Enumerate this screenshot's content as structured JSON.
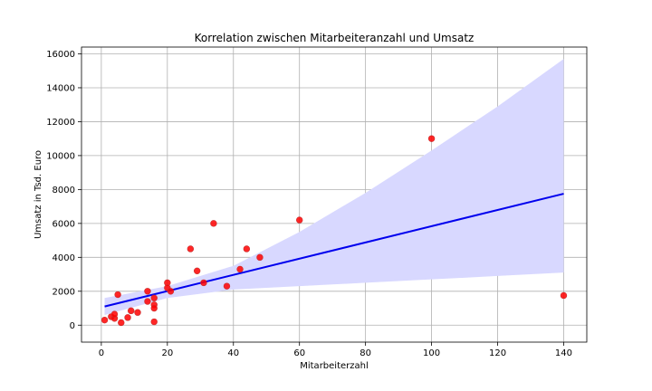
{
  "chart_data": {
    "type": "scatter",
    "title": "Korrelation zwischen Mitarbeiteranzahl und Umsatz",
    "xlabel": "Mitarbeiterzahl",
    "ylabel": "Umsatz in Tsd. Euro",
    "xlim": [
      -6,
      147
    ],
    "ylim": [
      -1000,
      16400
    ],
    "xticks": [
      0,
      20,
      40,
      60,
      80,
      100,
      120,
      140
    ],
    "yticks": [
      0,
      2000,
      4000,
      6000,
      8000,
      10000,
      12000,
      14000,
      16000
    ],
    "grid": true,
    "colors": {
      "points": "#ff0000",
      "points_edge": "#c83030",
      "regression": "#0000ee",
      "confidence_band": "#d8d8ff",
      "grid": "#b0b0b0"
    },
    "points": [
      {
        "x": 1,
        "y": 300
      },
      {
        "x": 3,
        "y": 500
      },
      {
        "x": 4,
        "y": 400
      },
      {
        "x": 4,
        "y": 650
      },
      {
        "x": 5,
        "y": 1800
      },
      {
        "x": 6,
        "y": 150
      },
      {
        "x": 8,
        "y": 450
      },
      {
        "x": 9,
        "y": 850
      },
      {
        "x": 11,
        "y": 750
      },
      {
        "x": 14,
        "y": 2000
      },
      {
        "x": 14,
        "y": 1400
      },
      {
        "x": 16,
        "y": 1600
      },
      {
        "x": 16,
        "y": 1200
      },
      {
        "x": 16,
        "y": 1000
      },
      {
        "x": 16,
        "y": 200
      },
      {
        "x": 20,
        "y": 2500
      },
      {
        "x": 20,
        "y": 2200
      },
      {
        "x": 21,
        "y": 2000
      },
      {
        "x": 27,
        "y": 4500
      },
      {
        "x": 29,
        "y": 3200
      },
      {
        "x": 31,
        "y": 2500
      },
      {
        "x": 34,
        "y": 6000
      },
      {
        "x": 38,
        "y": 2300
      },
      {
        "x": 42,
        "y": 3300
      },
      {
        "x": 44,
        "y": 4500
      },
      {
        "x": 48,
        "y": 4000
      },
      {
        "x": 60,
        "y": 6200
      },
      {
        "x": 100,
        "y": 11000
      },
      {
        "x": 140,
        "y": 1750
      }
    ],
    "regression_line": {
      "x": [
        1,
        140
      ],
      "y": [
        1100,
        7750
      ]
    },
    "confidence_band": {
      "x": [
        1,
        20,
        40,
        60,
        80,
        100,
        120,
        140
      ],
      "lower": [
        600,
        1600,
        2100,
        2300,
        2500,
        2700,
        2900,
        3100
      ],
      "upper": [
        1600,
        2300,
        3500,
        5500,
        7800,
        10300,
        12900,
        15700
      ]
    }
  }
}
